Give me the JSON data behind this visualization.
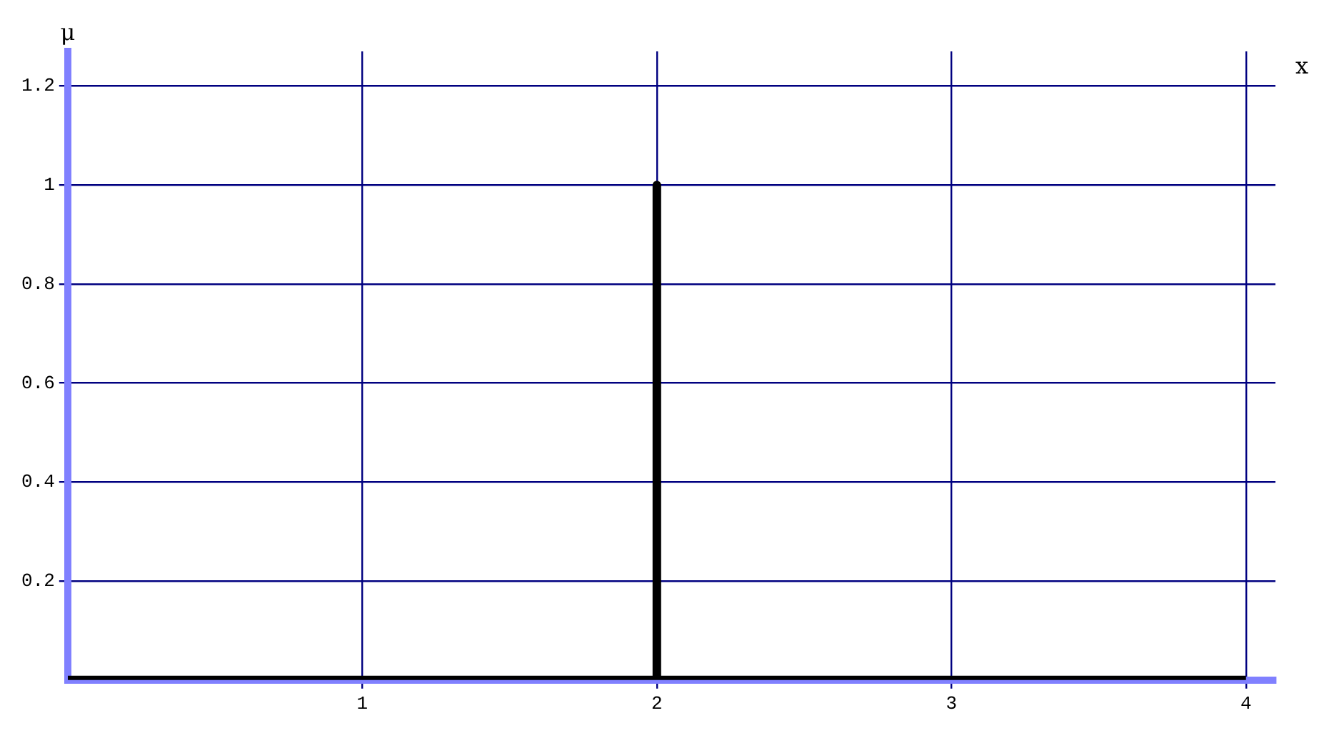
{
  "chart_data": {
    "type": "line",
    "xlabel": "x",
    "ylabel": "μ",
    "series": [
      {
        "color": "#000000",
        "x": [
          0,
          2,
          2,
          2,
          4
        ],
        "values": [
          0,
          0,
          1,
          0,
          0
        ]
      }
    ],
    "xlim": [
      0,
      4.1
    ],
    "ylim": [
      0,
      1.27
    ],
    "xticks": [
      1,
      2,
      3,
      4
    ],
    "yticks": [
      0.2,
      0.4,
      0.6,
      0.8,
      1,
      1.2
    ],
    "grid": true,
    "legend": false,
    "marker": "none",
    "line_style": "solid"
  }
}
